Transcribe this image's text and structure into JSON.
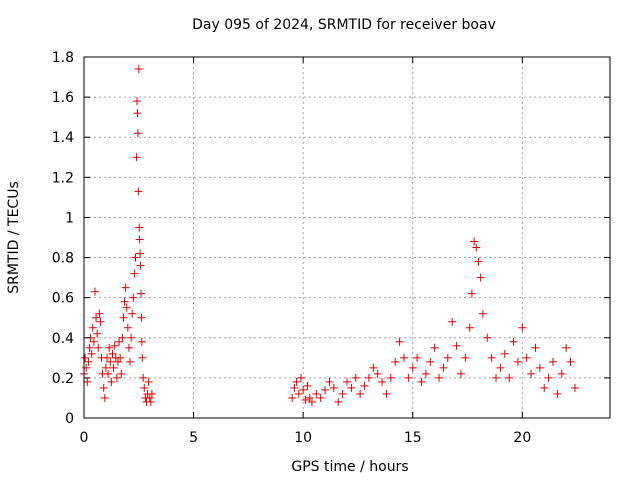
{
  "chart_data": {
    "type": "scatter",
    "title": "Day 095 of 2024, SRMTID for receiver boav",
    "xlabel": "GPS time / hours",
    "ylabel": "SRMTID / TECUs",
    "xlim": [
      0,
      24
    ],
    "ylim": [
      0,
      1.8
    ],
    "xticks": [
      0,
      5,
      10,
      15,
      20
    ],
    "yticks": [
      0,
      0.2,
      0.4,
      0.6,
      0.8,
      1,
      1.2,
      1.4,
      1.6,
      1.8
    ],
    "ytick_labels": [
      "0",
      "0.2",
      "0.4",
      "0.6",
      "0.8",
      "1",
      "1.2",
      "1.4",
      "1.6",
      "1.8"
    ],
    "grid": true,
    "marker": "+",
    "color": "#e00000",
    "series": [
      {
        "name": "boav",
        "points": [
          [
            0.0,
            0.22
          ],
          [
            0.05,
            0.3
          ],
          [
            0.1,
            0.25
          ],
          [
            0.15,
            0.18
          ],
          [
            0.2,
            0.28
          ],
          [
            0.25,
            0.35
          ],
          [
            0.3,
            0.4
          ],
          [
            0.35,
            0.32
          ],
          [
            0.4,
            0.45
          ],
          [
            0.45,
            0.38
          ],
          [
            0.5,
            0.63
          ],
          [
            0.55,
            0.5
          ],
          [
            0.6,
            0.42
          ],
          [
            0.65,
            0.35
          ],
          [
            0.7,
            0.52
          ],
          [
            0.75,
            0.48
          ],
          [
            0.8,
            0.3
          ],
          [
            0.85,
            0.22
          ],
          [
            0.9,
            0.15
          ],
          [
            0.95,
            0.1
          ],
          [
            1.0,
            0.25
          ],
          [
            1.05,
            0.3
          ],
          [
            1.1,
            0.22
          ],
          [
            1.15,
            0.35
          ],
          [
            1.2,
            0.28
          ],
          [
            1.25,
            0.18
          ],
          [
            1.3,
            0.32
          ],
          [
            1.35,
            0.25
          ],
          [
            1.4,
            0.36
          ],
          [
            1.45,
            0.3
          ],
          [
            1.5,
            0.2
          ],
          [
            1.55,
            0.28
          ],
          [
            1.6,
            0.38
          ],
          [
            1.65,
            0.3
          ],
          [
            1.7,
            0.22
          ],
          [
            1.75,
            0.4
          ],
          [
            1.8,
            0.5
          ],
          [
            1.85,
            0.58
          ],
          [
            1.9,
            0.65
          ],
          [
            1.95,
            0.55
          ],
          [
            2.0,
            0.45
          ],
          [
            2.05,
            0.35
          ],
          [
            2.1,
            0.28
          ],
          [
            2.15,
            0.4
          ],
          [
            2.2,
            0.52
          ],
          [
            2.25,
            0.6
          ],
          [
            2.3,
            0.72
          ],
          [
            2.35,
            0.8
          ],
          [
            2.4,
            1.3
          ],
          [
            2.42,
            1.58
          ],
          [
            2.44,
            1.52
          ],
          [
            2.46,
            1.42
          ],
          [
            2.48,
            1.13
          ],
          [
            2.5,
            1.74
          ],
          [
            2.52,
            0.95
          ],
          [
            2.54,
            0.89
          ],
          [
            2.56,
            0.82
          ],
          [
            2.58,
            0.76
          ],
          [
            2.6,
            0.62
          ],
          [
            2.62,
            0.5
          ],
          [
            2.64,
            0.38
          ],
          [
            2.66,
            0.3
          ],
          [
            2.7,
            0.2
          ],
          [
            2.75,
            0.15
          ],
          [
            2.8,
            0.1
          ],
          [
            2.85,
            0.08
          ],
          [
            2.9,
            0.12
          ],
          [
            2.95,
            0.18
          ],
          [
            3.0,
            0.1
          ],
          [
            3.05,
            0.08
          ],
          [
            3.1,
            0.12
          ],
          [
            9.5,
            0.1
          ],
          [
            9.6,
            0.15
          ],
          [
            9.7,
            0.18
          ],
          [
            9.8,
            0.12
          ],
          [
            9.9,
            0.2
          ],
          [
            10.0,
            0.14
          ],
          [
            10.1,
            0.09
          ],
          [
            10.2,
            0.16
          ],
          [
            10.3,
            0.1
          ],
          [
            10.4,
            0.08
          ],
          [
            10.6,
            0.12
          ],
          [
            10.8,
            0.1
          ],
          [
            11.0,
            0.14
          ],
          [
            11.2,
            0.18
          ],
          [
            11.4,
            0.15
          ],
          [
            11.6,
            0.08
          ],
          [
            11.8,
            0.12
          ],
          [
            12.0,
            0.18
          ],
          [
            12.2,
            0.15
          ],
          [
            12.4,
            0.2
          ],
          [
            12.6,
            0.12
          ],
          [
            12.8,
            0.16
          ],
          [
            13.0,
            0.2
          ],
          [
            13.2,
            0.25
          ],
          [
            13.4,
            0.22
          ],
          [
            13.6,
            0.18
          ],
          [
            13.8,
            0.12
          ],
          [
            14.0,
            0.2
          ],
          [
            14.2,
            0.28
          ],
          [
            14.4,
            0.38
          ],
          [
            14.6,
            0.3
          ],
          [
            14.8,
            0.2
          ],
          [
            15.0,
            0.25
          ],
          [
            15.2,
            0.3
          ],
          [
            15.4,
            0.18
          ],
          [
            15.6,
            0.22
          ],
          [
            15.8,
            0.28
          ],
          [
            16.0,
            0.35
          ],
          [
            16.2,
            0.2
          ],
          [
            16.4,
            0.25
          ],
          [
            16.6,
            0.3
          ],
          [
            16.8,
            0.48
          ],
          [
            17.0,
            0.36
          ],
          [
            17.2,
            0.22
          ],
          [
            17.4,
            0.3
          ],
          [
            17.6,
            0.45
          ],
          [
            17.7,
            0.62
          ],
          [
            17.8,
            0.88
          ],
          [
            17.9,
            0.85
          ],
          [
            18.0,
            0.78
          ],
          [
            18.1,
            0.7
          ],
          [
            18.2,
            0.52
          ],
          [
            18.4,
            0.4
          ],
          [
            18.6,
            0.3
          ],
          [
            18.8,
            0.2
          ],
          [
            19.0,
            0.25
          ],
          [
            19.2,
            0.32
          ],
          [
            19.4,
            0.2
          ],
          [
            19.6,
            0.38
          ],
          [
            19.8,
            0.28
          ],
          [
            20.0,
            0.45
          ],
          [
            20.2,
            0.3
          ],
          [
            20.4,
            0.22
          ],
          [
            20.6,
            0.35
          ],
          [
            20.8,
            0.25
          ],
          [
            21.0,
            0.15
          ],
          [
            21.2,
            0.2
          ],
          [
            21.4,
            0.28
          ],
          [
            21.6,
            0.12
          ],
          [
            21.8,
            0.22
          ],
          [
            22.0,
            0.35
          ],
          [
            22.2,
            0.28
          ],
          [
            22.4,
            0.15
          ]
        ]
      }
    ]
  }
}
